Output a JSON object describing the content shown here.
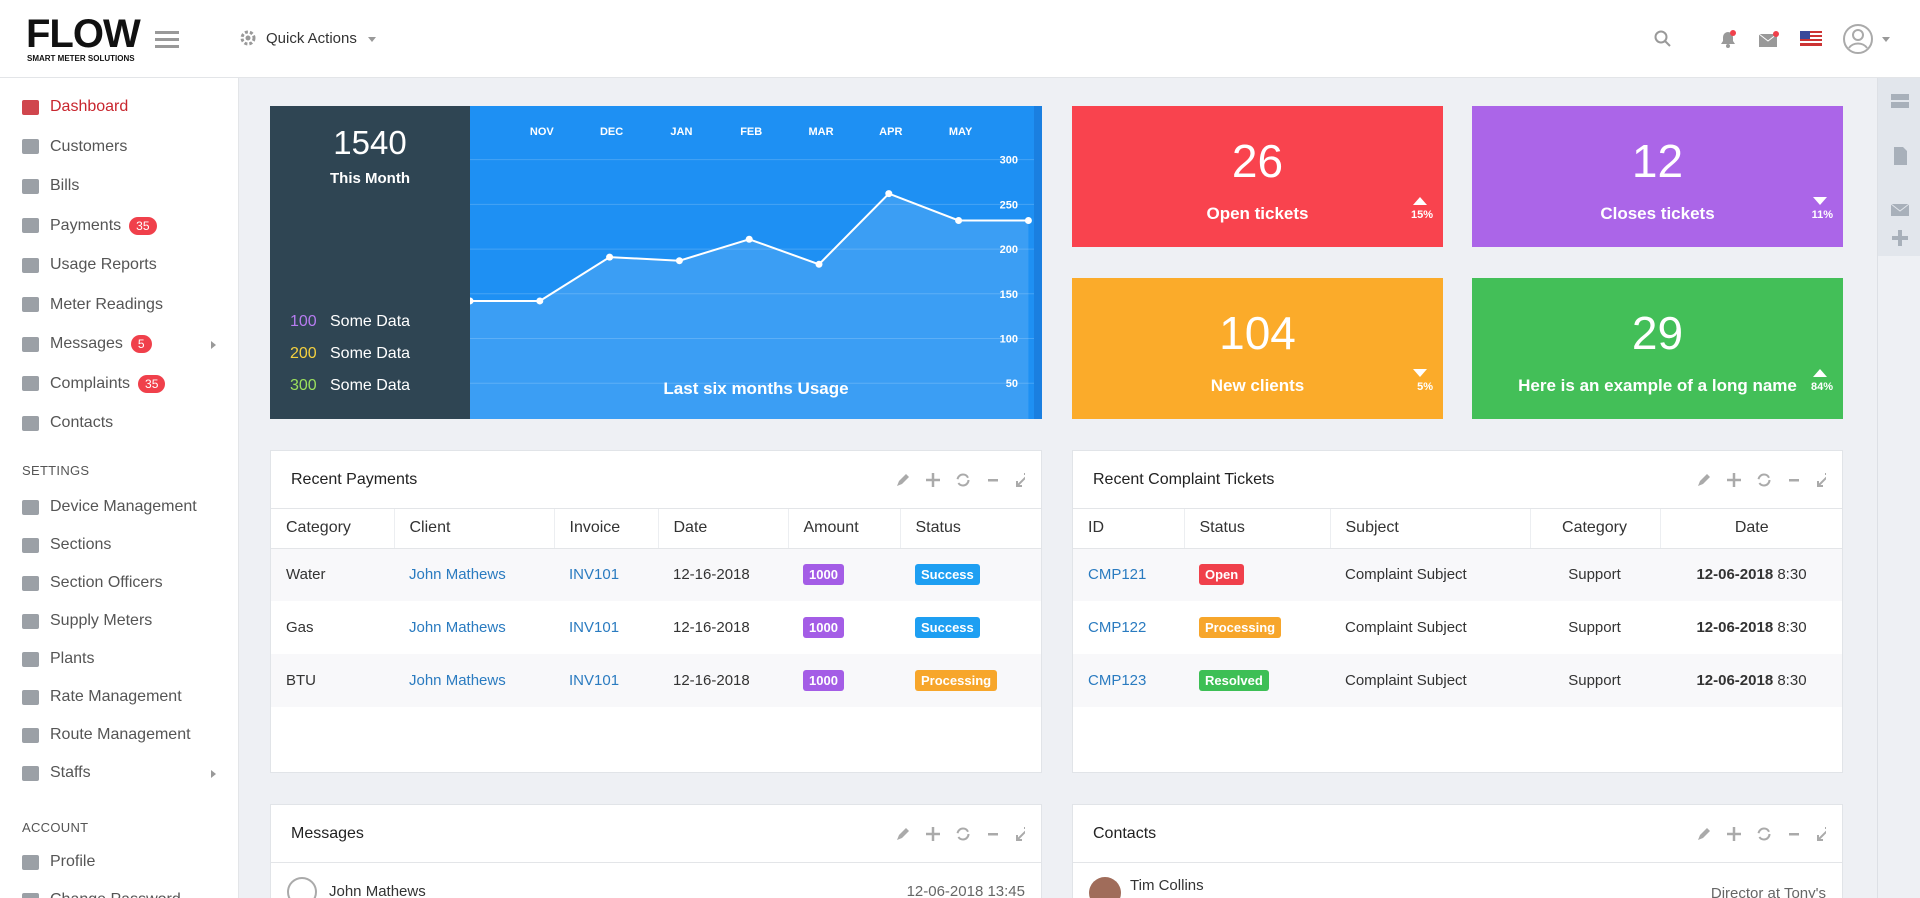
{
  "header": {
    "logo": "FLOW",
    "logo_sub": "SMART METER SOLUTIONS",
    "quick_actions": "Quick Actions"
  },
  "sidebar": {
    "items": [
      {
        "label": "Dashboard",
        "active": true
      },
      {
        "label": "Customers"
      },
      {
        "label": "Bills"
      },
      {
        "label": "Payments",
        "badge": "35"
      },
      {
        "label": "Usage Reports"
      },
      {
        "label": "Meter Readings"
      },
      {
        "label": "Messages",
        "badge": "5",
        "submenu": true
      },
      {
        "label": "Complaints",
        "badge": "35"
      },
      {
        "label": "Contacts"
      }
    ],
    "settings_title": "SETTINGS",
    "settings_items": [
      {
        "label": "Device Management"
      },
      {
        "label": "Sections"
      },
      {
        "label": "Section Officers"
      },
      {
        "label": "Supply Meters"
      },
      {
        "label": "Plants"
      },
      {
        "label": "Rate Management"
      },
      {
        "label": "Route Management"
      },
      {
        "label": "Staffs",
        "submenu": true
      }
    ],
    "account_title": "ACCOUNT",
    "account_items": [
      {
        "label": "Profile"
      },
      {
        "label": "Change Password"
      }
    ]
  },
  "usage": {
    "total": "1540",
    "total_label": "This Month",
    "legend": [
      {
        "value": "100",
        "label": "Some Data",
        "color": "#b77cf0"
      },
      {
        "value": "200",
        "label": "Some Data",
        "color": "#f4d03f"
      },
      {
        "value": "300",
        "label": "Some Data",
        "color": "#9be15d"
      }
    ]
  },
  "chart_data": {
    "type": "line",
    "title": "Last six months Usage",
    "categories": [
      null,
      "NOV",
      "DEC",
      "JAN",
      "FEB",
      "MAR",
      "APR",
      "MAY",
      null
    ],
    "series": [
      {
        "name": "Usage",
        "color": "#ffffff",
        "values": [
          142,
          142,
          191,
          187,
          211,
          183,
          262,
          232,
          232
        ]
      }
    ],
    "ylim": [
      10,
      360
    ],
    "yticks": [
      50,
      100,
      150,
      200,
      250,
      300
    ],
    "grid": true
  },
  "stats": [
    {
      "value": "26",
      "label": "Open tickets",
      "change": "15%",
      "direction": "up",
      "color": "#f9434e"
    },
    {
      "value": "12",
      "label": "Closes tickets",
      "change": "11%",
      "direction": "down",
      "color": "#ab65e8"
    },
    {
      "value": "104",
      "label": "New clients",
      "change": "5%",
      "direction": "down",
      "color": "#fbab2a"
    },
    {
      "value": "29",
      "label": "Here is an example of a long name",
      "change": "84%",
      "direction": "up",
      "color": "#43bf58"
    }
  ],
  "payments": {
    "title": "Recent Payments",
    "columns": [
      "Category",
      "Client",
      "Invoice",
      "Date",
      "Amount",
      "Status"
    ],
    "rows": [
      {
        "category": "Water",
        "client": "John Mathews",
        "invoice": "INV101",
        "date": "12-16-2018",
        "amount": "1000",
        "status": "Success",
        "status_color": "#1e9ff2"
      },
      {
        "category": "Gas",
        "client": "John Mathews",
        "invoice": "INV101",
        "date": "12-16-2018",
        "amount": "1000",
        "status": "Success",
        "status_color": "#1e9ff2"
      },
      {
        "category": "BTU",
        "client": "John Mathews",
        "invoice": "INV101",
        "date": "12-16-2018",
        "amount": "1000",
        "status": "Processing",
        "status_color": "#f7a62b"
      }
    ]
  },
  "complaints": {
    "title": "Recent Complaint Tickets",
    "columns": [
      "ID",
      "Status",
      "Subject",
      "Category",
      "Date"
    ],
    "rows": [
      {
        "id": "CMP121",
        "status": "Open",
        "status_color": "#f0404b",
        "subject": "Complaint Subject",
        "category": "Support",
        "date": "12-06-2018",
        "time": "8:30"
      },
      {
        "id": "CMP122",
        "status": "Processing",
        "status_color": "#f7a62b",
        "subject": "Complaint Subject",
        "category": "Support",
        "date": "12-06-2018",
        "time": "8:30"
      },
      {
        "id": "CMP123",
        "status": "Resolved",
        "status_color": "#3dbf55",
        "subject": "Complaint Subject",
        "category": "Support",
        "date": "12-06-2018",
        "time": "8:30"
      }
    ]
  },
  "messages": {
    "title": "Messages",
    "items": [
      {
        "name": "John Mathews",
        "time": "12-06-2018 13:45"
      }
    ]
  },
  "contacts": {
    "title": "Contacts",
    "items": [
      {
        "name": "Tim Collins",
        "role": "Director at Tony's"
      }
    ]
  }
}
